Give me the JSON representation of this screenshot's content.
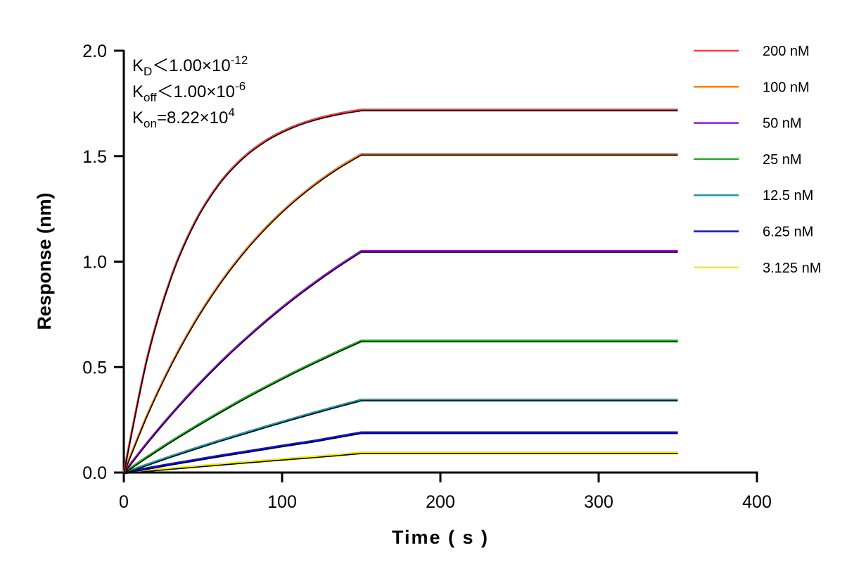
{
  "chart_data": {
    "type": "line",
    "title": "",
    "xlabel": "Time ( s )",
    "ylabel": "Response (nm)",
    "xlim": [
      0,
      400
    ],
    "ylim": [
      0,
      2.0
    ],
    "xticks": [
      0,
      100,
      200,
      300,
      400
    ],
    "yticks": [
      0.0,
      0.5,
      1.0,
      1.5,
      2.0
    ],
    "ytick_labels": [
      "0.0",
      "0.5",
      "1.0",
      "1.5",
      "2.0"
    ],
    "grid": false,
    "legend_placement": "right",
    "fit_line_color": "#000000",
    "annotations": [
      {
        "main": "K",
        "sub": "D",
        "text": "＜1.00×10",
        "sup": "-12"
      },
      {
        "main": "K",
        "sub": "off",
        "text": "＜1.00×10",
        "sup": "-6"
      },
      {
        "main": "K",
        "sub": "on",
        "text": "=8.22×10",
        "sup": "4"
      }
    ],
    "x": [
      0,
      15,
      30,
      45,
      60,
      75,
      90,
      105,
      120,
      135,
      150,
      350
    ],
    "series": [
      {
        "name": "200 nM",
        "color": "#e8474a",
        "values": [
          0,
          0.551,
          0.929,
          1.189,
          1.368,
          1.491,
          1.576,
          1.634,
          1.674,
          1.701,
          1.72,
          1.72
        ]
      },
      {
        "name": "100 nM",
        "color": "#f5841f",
        "values": [
          0,
          0.277,
          0.514,
          0.717,
          0.89,
          1.038,
          1.164,
          1.272,
          1.364,
          1.443,
          1.51,
          1.51
        ]
      },
      {
        "name": "50 nM",
        "color": "#9b16d6",
        "values": [
          0,
          0.144,
          0.277,
          0.401,
          0.516,
          0.622,
          0.721,
          0.813,
          0.898,
          0.977,
          1.05,
          1.05
        ]
      },
      {
        "name": "25 nM",
        "color": "#19b51d",
        "values": [
          0,
          0.076,
          0.149,
          0.218,
          0.284,
          0.348,
          0.408,
          0.466,
          0.521,
          0.574,
          0.625,
          0.625
        ]
      },
      {
        "name": "12.5 nM",
        "color": "#1e9aa8",
        "values": [
          0,
          0.039,
          0.078,
          0.115,
          0.151,
          0.185,
          0.219,
          0.252,
          0.284,
          0.315,
          0.345,
          0.345
        ]
      },
      {
        "name": "6.25 nM",
        "color": "#1212e0",
        "values": [
          0,
          0.021,
          0.041,
          0.06,
          0.079,
          0.097,
          0.115,
          0.133,
          0.15,
          0.17,
          0.19,
          0.19
        ]
      },
      {
        "name": "3.125 nM",
        "color": "#f2ee10",
        "values": [
          0,
          0.0105,
          0.0205,
          0.03,
          0.0395,
          0.049,
          0.058,
          0.067,
          0.0755,
          0.085,
          0.095,
          0.095
        ]
      }
    ]
  }
}
